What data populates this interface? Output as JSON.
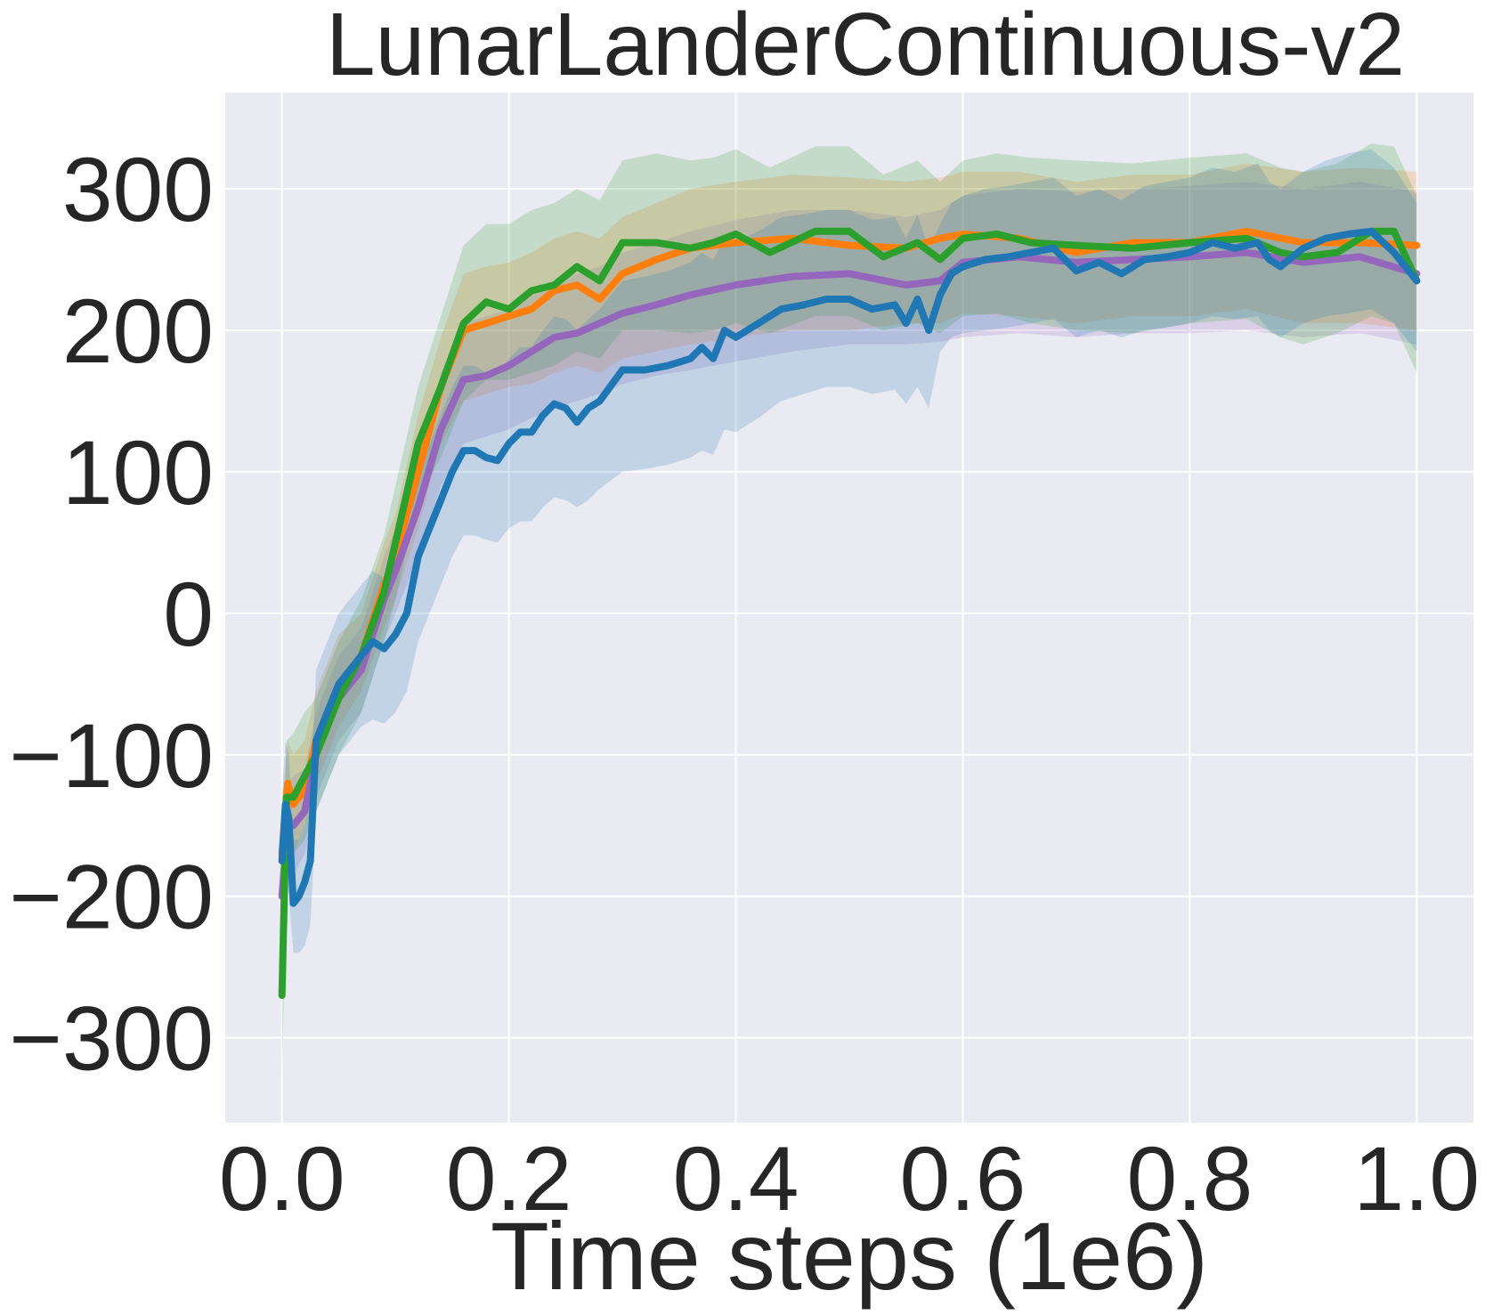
{
  "chart_data": {
    "type": "line",
    "title": "LunarLanderContinuous-v2",
    "xlabel": "Time steps (1e6)",
    "ylabel": "",
    "xlim": [
      -0.05,
      1.05
    ],
    "ylim": [
      -360,
      368
    ],
    "xticks": [
      0.0,
      0.2,
      0.4,
      0.6,
      0.8,
      1.0
    ],
    "xtick_labels": [
      "0.0",
      "0.2",
      "0.4",
      "0.6",
      "0.8",
      "1.0"
    ],
    "yticks": [
      -300,
      -200,
      -100,
      0,
      100,
      200,
      300
    ],
    "ytick_labels": [
      "−300",
      "−200",
      "−100",
      "0",
      "100",
      "200",
      "300"
    ],
    "grid": true,
    "background": "#eaeaf2",
    "series": [
      {
        "color": "#ff7f0e",
        "x": [
          0.0,
          0.005,
          0.01,
          0.02,
          0.03,
          0.05,
          0.07,
          0.09,
          0.1,
          0.12,
          0.14,
          0.16,
          0.18,
          0.2,
          0.22,
          0.24,
          0.26,
          0.28,
          0.3,
          0.33,
          0.36,
          0.4,
          0.45,
          0.5,
          0.55,
          0.58,
          0.6,
          0.65,
          0.7,
          0.75,
          0.8,
          0.85,
          0.9,
          0.95,
          1.0
        ],
        "y": [
          -170,
          -120,
          -135,
          -125,
          -90,
          -50,
          -30,
          20,
          40,
          100,
          160,
          200,
          205,
          210,
          215,
          228,
          232,
          222,
          240,
          250,
          258,
          262,
          265,
          260,
          258,
          265,
          268,
          265,
          255,
          262,
          262,
          270,
          262,
          262,
          260
        ],
        "lower": [
          -190,
          -160,
          -170,
          -150,
          -120,
          -80,
          -55,
          -10,
          10,
          60,
          120,
          150,
          155,
          160,
          162,
          170,
          175,
          170,
          180,
          185,
          190,
          195,
          200,
          200,
          205,
          205,
          212,
          210,
          205,
          210,
          210,
          215,
          205,
          205,
          200
        ],
        "upper": [
          -140,
          -90,
          -100,
          -90,
          -55,
          -15,
          0,
          50,
          70,
          140,
          195,
          240,
          245,
          248,
          255,
          265,
          270,
          265,
          280,
          290,
          300,
          305,
          310,
          308,
          305,
          308,
          312,
          312,
          305,
          310,
          310,
          318,
          312,
          315,
          312
        ]
      },
      {
        "color": "#9467bd",
        "x": [
          0.0,
          0.005,
          0.01,
          0.02,
          0.03,
          0.05,
          0.07,
          0.09,
          0.1,
          0.12,
          0.14,
          0.16,
          0.18,
          0.2,
          0.22,
          0.24,
          0.26,
          0.28,
          0.3,
          0.33,
          0.36,
          0.4,
          0.45,
          0.5,
          0.55,
          0.58,
          0.6,
          0.65,
          0.7,
          0.75,
          0.8,
          0.85,
          0.9,
          0.95,
          1.0
        ],
        "y": [
          -200,
          -150,
          -150,
          -140,
          -100,
          -60,
          -40,
          10,
          30,
          75,
          130,
          165,
          168,
          175,
          185,
          195,
          198,
          205,
          212,
          218,
          225,
          232,
          238,
          240,
          232,
          235,
          248,
          252,
          248,
          250,
          252,
          255,
          248,
          252,
          240
        ],
        "lower": [
          -220,
          -180,
          -185,
          -170,
          -130,
          -90,
          -70,
          -20,
          0,
          40,
          90,
          120,
          125,
          130,
          138,
          145,
          150,
          155,
          162,
          168,
          172,
          178,
          185,
          190,
          190,
          192,
          195,
          198,
          195,
          198,
          198,
          200,
          195,
          198,
          190
        ],
        "upper": [
          -180,
          -120,
          -115,
          -110,
          -70,
          -30,
          -10,
          40,
          60,
          110,
          170,
          205,
          210,
          215,
          225,
          235,
          240,
          245,
          255,
          262,
          270,
          278,
          285,
          285,
          280,
          285,
          295,
          300,
          298,
          300,
          302,
          305,
          300,
          305,
          298
        ]
      },
      {
        "color": "#2ca02c",
        "x": [
          0.0,
          0.002,
          0.004,
          0.01,
          0.02,
          0.03,
          0.05,
          0.07,
          0.09,
          0.1,
          0.12,
          0.14,
          0.16,
          0.18,
          0.2,
          0.22,
          0.24,
          0.26,
          0.28,
          0.3,
          0.33,
          0.36,
          0.38,
          0.4,
          0.43,
          0.47,
          0.5,
          0.53,
          0.56,
          0.58,
          0.6,
          0.63,
          0.66,
          0.7,
          0.75,
          0.8,
          0.85,
          0.88,
          0.9,
          0.93,
          0.96,
          0.98,
          1.0
        ],
        "y": [
          -270,
          -200,
          -130,
          -130,
          -115,
          -100,
          -60,
          -30,
          15,
          50,
          120,
          160,
          205,
          220,
          215,
          228,
          232,
          245,
          235,
          262,
          262,
          258,
          262,
          268,
          255,
          270,
          270,
          252,
          262,
          250,
          265,
          268,
          262,
          260,
          258,
          262,
          265,
          255,
          252,
          255,
          270,
          270,
          235
        ],
        "lower": [
          -330,
          -260,
          -170,
          -170,
          -160,
          -140,
          -100,
          -70,
          -20,
          10,
          80,
          110,
          150,
          165,
          165,
          170,
          175,
          185,
          180,
          200,
          200,
          198,
          200,
          205,
          198,
          210,
          210,
          200,
          205,
          198,
          210,
          212,
          205,
          200,
          198,
          205,
          208,
          195,
          190,
          198,
          210,
          205,
          170
        ],
        "upper": [
          -210,
          -140,
          -90,
          -85,
          -70,
          -60,
          -20,
          10,
          55,
          90,
          160,
          210,
          260,
          275,
          275,
          285,
          290,
          300,
          292,
          320,
          325,
          320,
          322,
          328,
          315,
          330,
          330,
          310,
          320,
          305,
          320,
          325,
          322,
          320,
          318,
          322,
          325,
          315,
          312,
          318,
          332,
          330,
          295
        ]
      },
      {
        "color": "#1f77b4",
        "x": [
          0.0,
          0.003,
          0.006,
          0.01,
          0.015,
          0.02,
          0.025,
          0.03,
          0.04,
          0.05,
          0.06,
          0.07,
          0.08,
          0.09,
          0.1,
          0.11,
          0.12,
          0.13,
          0.14,
          0.15,
          0.16,
          0.17,
          0.18,
          0.19,
          0.2,
          0.21,
          0.22,
          0.23,
          0.24,
          0.25,
          0.26,
          0.27,
          0.28,
          0.3,
          0.32,
          0.34,
          0.36,
          0.37,
          0.38,
          0.39,
          0.4,
          0.42,
          0.44,
          0.46,
          0.48,
          0.5,
          0.52,
          0.54,
          0.55,
          0.56,
          0.57,
          0.58,
          0.59,
          0.6,
          0.62,
          0.64,
          0.66,
          0.68,
          0.7,
          0.72,
          0.74,
          0.76,
          0.78,
          0.8,
          0.82,
          0.84,
          0.86,
          0.87,
          0.88,
          0.9,
          0.92,
          0.94,
          0.96,
          0.98,
          1.0
        ],
        "y": [
          -175,
          -135,
          -145,
          -205,
          -200,
          -190,
          -175,
          -90,
          -70,
          -50,
          -40,
          -30,
          -20,
          -25,
          -15,
          0,
          40,
          60,
          80,
          100,
          115,
          115,
          110,
          108,
          120,
          128,
          128,
          140,
          148,
          145,
          135,
          145,
          150,
          172,
          172,
          175,
          180,
          188,
          180,
          200,
          195,
          205,
          215,
          218,
          222,
          222,
          215,
          218,
          205,
          222,
          200,
          225,
          240,
          245,
          250,
          252,
          255,
          258,
          242,
          248,
          240,
          250,
          252,
          255,
          262,
          258,
          262,
          250,
          245,
          258,
          265,
          268,
          270,
          255,
          235
        ],
        "lower": [
          -230,
          -190,
          -200,
          -240,
          -240,
          -235,
          -220,
          -140,
          -120,
          -100,
          -90,
          -80,
          -75,
          -78,
          -70,
          -55,
          -20,
          0,
          20,
          40,
          55,
          55,
          52,
          50,
          60,
          65,
          65,
          75,
          82,
          80,
          75,
          80,
          88,
          100,
          102,
          105,
          110,
          115,
          112,
          130,
          128,
          138,
          150,
          155,
          160,
          160,
          155,
          158,
          148,
          160,
          145,
          185,
          195,
          198,
          200,
          202,
          205,
          208,
          195,
          200,
          195,
          200,
          202,
          205,
          210,
          208,
          210,
          200,
          195,
          205,
          210,
          212,
          215,
          205,
          185
        ],
        "upper": [
          -130,
          -90,
          -100,
          -160,
          -160,
          -150,
          -130,
          -40,
          -20,
          0,
          10,
          20,
          30,
          25,
          35,
          55,
          95,
          120,
          140,
          160,
          175,
          175,
          170,
          168,
          180,
          188,
          188,
          200,
          210,
          208,
          200,
          208,
          215,
          235,
          238,
          242,
          248,
          255,
          250,
          265,
          262,
          270,
          280,
          282,
          285,
          285,
          278,
          280,
          265,
          282,
          258,
          275,
          290,
          295,
          300,
          302,
          305,
          308,
          295,
          300,
          292,
          302,
          305,
          308,
          315,
          312,
          318,
          305,
          300,
          312,
          320,
          325,
          328,
          315,
          290
        ]
      }
    ]
  }
}
